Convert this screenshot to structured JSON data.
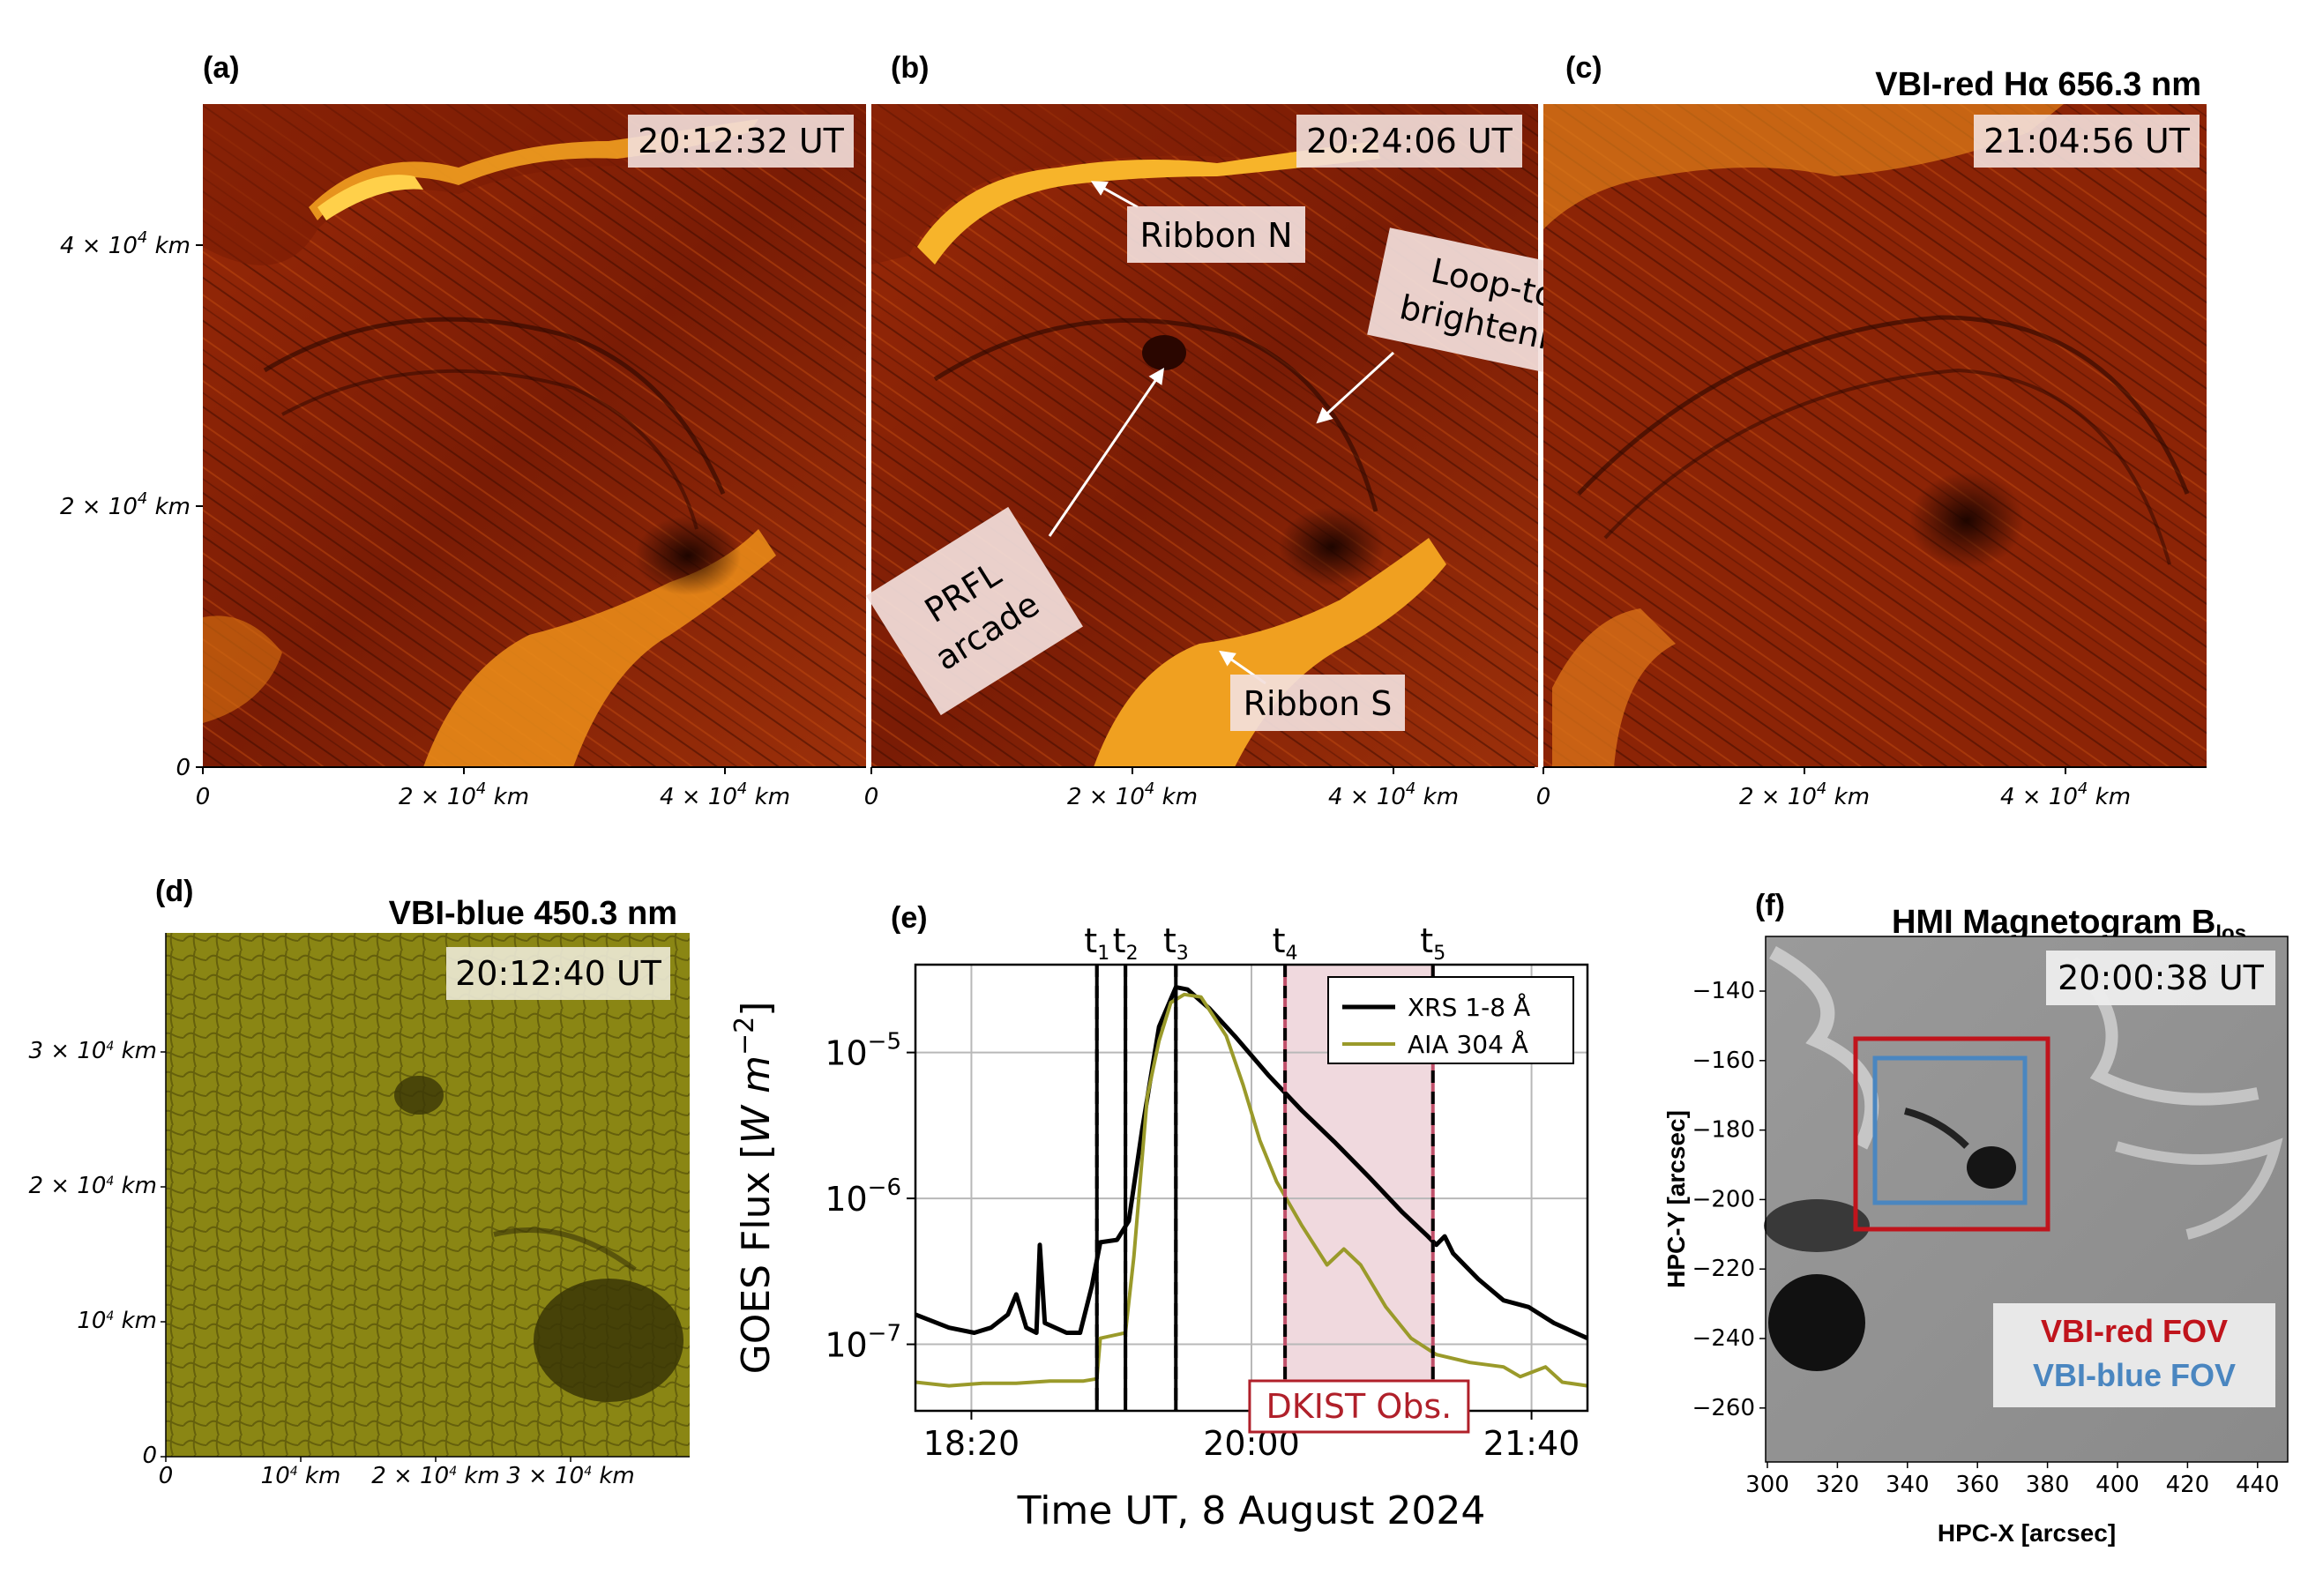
{
  "panels": {
    "a": {
      "label": "(a)",
      "time": "20:12:32 UT"
    },
    "b": {
      "label": "(b)",
      "time": "20:24:06 UT",
      "annotations": {
        "ribbon_n": "Ribbon N",
        "ribbon_s": "Ribbon S",
        "loop_top_1": "Loop-top",
        "loop_top_2": "brightening",
        "prfl_1": "PRFL",
        "prfl_2": "arcade"
      }
    },
    "c": {
      "label": "(c)",
      "time": "21:04:56 UT",
      "title": "VBI-red Hα 656.3 nm"
    },
    "d": {
      "label": "(d)",
      "time": "20:12:40 UT",
      "title": "VBI-blue 450.3 nm"
    },
    "e": {
      "label": "(e)"
    },
    "f": {
      "label": "(f)",
      "time": "20:00:38 UT",
      "title": "HMI Magnetogram B",
      "title_sub": "los",
      "xlabel": "HPC-X [arcsec]",
      "ylabel": "HPC-Y [arcsec]",
      "xticks": [
        "300",
        "320",
        "340",
        "360",
        "380",
        "400",
        "420",
        "440"
      ],
      "yticks": [
        "−140",
        "−160",
        "−180",
        "−200",
        "−220",
        "−240",
        "−260"
      ],
      "fov_red": "VBI-red FOV",
      "fov_blue": "VBI-blue FOV"
    }
  },
  "top_axes": {
    "y_ticks": [
      "0",
      "2 × 10",
      "4 × 10"
    ],
    "y_unit": "km",
    "x_ticks": [
      "0",
      "2 × 10",
      "4 × 10"
    ],
    "exp": "4"
  },
  "d_axes": {
    "y_ticks": [
      "0",
      "10",
      "2 × 10",
      "3 × 10"
    ],
    "x_ticks": [
      "0",
      "10",
      "2 × 10",
      "3 × 10"
    ],
    "unit": "km",
    "exp": "4"
  },
  "colors": {
    "red_fov": "#c0141c",
    "blue_fov": "#4a86c0",
    "xrs": "#000000",
    "aia": "#9a9a2a",
    "dkist": "#b0202a"
  },
  "chart_data": {
    "type": "line",
    "title": "",
    "xlabel": "Time UT, 8 August 2024",
    "ylabel": "GOES Flux [W m^-2]",
    "ylabel_main": "GOES Flux [",
    "ylabel_units": "W m",
    "ylabel_exp": "−2",
    "ylabel_close": "]",
    "yscale": "log",
    "ylim": [
      3.5e-08,
      4e-05
    ],
    "xlim_hours": [
      18.0,
      22.0
    ],
    "x_ticks": [
      {
        "h": 18.333,
        "label": "18:20"
      },
      {
        "h": 20.0,
        "label": "20:00"
      },
      {
        "h": 21.667,
        "label": "21:40"
      }
    ],
    "y_ticks": [
      {
        "v": 1e-07,
        "label": "10",
        "exp": "−7"
      },
      {
        "v": 1e-06,
        "label": "10",
        "exp": "−6"
      },
      {
        "v": 1e-05,
        "label": "10",
        "exp": "−5"
      }
    ],
    "markers": [
      {
        "name": "t",
        "sub": "1",
        "h": 19.08
      },
      {
        "name": "t",
        "sub": "2",
        "h": 19.25
      },
      {
        "name": "t",
        "sub": "3",
        "h": 19.55
      },
      {
        "name": "t",
        "sub": "4",
        "h": 20.2
      },
      {
        "name": "t",
        "sub": "5",
        "h": 21.08
      }
    ],
    "shaded": {
      "from_h": 20.2,
      "to_h": 21.08,
      "label": "DKIST Obs."
    },
    "series": [
      {
        "name": "XRS 1-8 Å",
        "points": [
          [
            18.0,
            1.6e-07
          ],
          [
            18.2,
            1.3e-07
          ],
          [
            18.35,
            1.2e-07
          ],
          [
            18.45,
            1.3e-07
          ],
          [
            18.55,
            1.6e-07
          ],
          [
            18.6,
            2.2e-07
          ],
          [
            18.66,
            1.3e-07
          ],
          [
            18.72,
            1.2e-07
          ],
          [
            18.74,
            4.8e-07
          ],
          [
            18.77,
            1.4e-07
          ],
          [
            18.9,
            1.2e-07
          ],
          [
            18.98,
            1.2e-07
          ],
          [
            19.05,
            2.5e-07
          ],
          [
            19.1,
            5e-07
          ],
          [
            19.2,
            5.2e-07
          ],
          [
            19.27,
            7e-07
          ],
          [
            19.35,
            3e-06
          ],
          [
            19.45,
            1.5e-05
          ],
          [
            19.55,
            2.8e-05
          ],
          [
            19.62,
            2.7e-05
          ],
          [
            19.75,
            2e-05
          ],
          [
            19.9,
            1.3e-05
          ],
          [
            20.1,
            7e-06
          ],
          [
            20.3,
            4e-06
          ],
          [
            20.5,
            2.4e-06
          ],
          [
            20.7,
            1.4e-06
          ],
          [
            20.9,
            8e-07
          ],
          [
            21.05,
            5.5e-07
          ],
          [
            21.1,
            4.8e-07
          ],
          [
            21.15,
            5.5e-07
          ],
          [
            21.2,
            4.2e-07
          ],
          [
            21.35,
            2.8e-07
          ],
          [
            21.5,
            2e-07
          ],
          [
            21.65,
            1.8e-07
          ],
          [
            21.8,
            1.4e-07
          ],
          [
            22.0,
            1.1e-07
          ]
        ]
      },
      {
        "name": "AIA 304 Å",
        "points": [
          [
            18.0,
            5.5e-08
          ],
          [
            18.2,
            5.2e-08
          ],
          [
            18.4,
            5.4e-08
          ],
          [
            18.6,
            5.4e-08
          ],
          [
            18.8,
            5.6e-08
          ],
          [
            19.0,
            5.6e-08
          ],
          [
            19.08,
            5.8e-08
          ],
          [
            19.1,
            1.1e-07
          ],
          [
            19.25,
            1.2e-07
          ],
          [
            19.3,
            4e-07
          ],
          [
            19.38,
            5e-06
          ],
          [
            19.45,
            1.2e-05
          ],
          [
            19.52,
            2.2e-05
          ],
          [
            19.6,
            2.5e-05
          ],
          [
            19.7,
            2.4e-05
          ],
          [
            19.85,
            1.3e-05
          ],
          [
            19.95,
            6e-06
          ],
          [
            20.05,
            2.5e-06
          ],
          [
            20.15,
            1.3e-06
          ],
          [
            20.3,
            6.5e-07
          ],
          [
            20.45,
            3.5e-07
          ],
          [
            20.55,
            4.5e-07
          ],
          [
            20.65,
            3.5e-07
          ],
          [
            20.8,
            1.8e-07
          ],
          [
            20.95,
            1.1e-07
          ],
          [
            21.1,
            8.5e-08
          ],
          [
            21.3,
            7.5e-08
          ],
          [
            21.5,
            7e-08
          ],
          [
            21.6,
            6e-08
          ],
          [
            21.75,
            7e-08
          ],
          [
            21.85,
            5.5e-08
          ],
          [
            22.0,
            5.2e-08
          ]
        ]
      }
    ]
  }
}
